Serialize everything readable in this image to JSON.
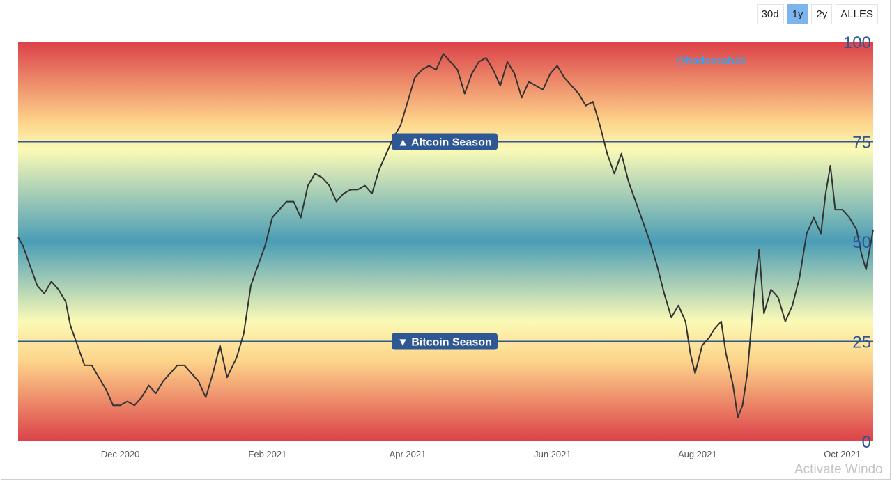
{
  "range_selector": {
    "buttons": [
      {
        "label": "30d",
        "active": false
      },
      {
        "label": "1y",
        "active": true
      },
      {
        "label": "2y",
        "active": false
      },
      {
        "label": "ALLES",
        "active": false
      }
    ],
    "active_color": "#7cb5ec"
  },
  "watermark": "Activate Windo",
  "chart_data": {
    "type": "line",
    "title": "",
    "xlabel": "",
    "ylabel": "",
    "ylim": [
      0,
      100
    ],
    "xlim": [
      "2020-10-19",
      "2021-10-14"
    ],
    "y_ticks": [
      "0",
      "25",
      "50",
      "75",
      "100"
    ],
    "x_ticks": [
      {
        "date": "2020-12-01",
        "label": "Dec 2020"
      },
      {
        "date": "2021-02-01",
        "label": "Feb 2021"
      },
      {
        "date": "2021-04-01",
        "label": "Apr 2021"
      },
      {
        "date": "2021-06-01",
        "label": "Jun 2021"
      },
      {
        "date": "2021-08-01",
        "label": "Aug 2021"
      },
      {
        "date": "2021-10-01",
        "label": "Oct 2021"
      }
    ],
    "thresholds": [
      {
        "value": 75,
        "label": "▲ Altcoin Season"
      },
      {
        "value": 25,
        "label": "▼ Bitcoin Season"
      }
    ],
    "annotation": "@hadassah26",
    "background_gradient": [
      "#dc4149",
      "#fdd38a",
      "#fbfab6",
      "#4a9db6",
      "#fbfab6",
      "#fdd38a",
      "#dc4149"
    ],
    "line_color": "#333333",
    "threshold_color": "#2f5794",
    "series": [
      {
        "points": [
          [
            "2020-10-19",
            51
          ],
          [
            "2020-10-21",
            49
          ],
          [
            "2020-10-24",
            44
          ],
          [
            "2020-10-27",
            39
          ],
          [
            "2020-10-30",
            37
          ],
          [
            "2020-11-02",
            40
          ],
          [
            "2020-11-05",
            38
          ],
          [
            "2020-11-08",
            35
          ],
          [
            "2020-11-10",
            29
          ],
          [
            "2020-11-13",
            24
          ],
          [
            "2020-11-16",
            19
          ],
          [
            "2020-11-19",
            19
          ],
          [
            "2020-11-22",
            16
          ],
          [
            "2020-11-25",
            13
          ],
          [
            "2020-11-28",
            9
          ],
          [
            "2020-12-01",
            9
          ],
          [
            "2020-12-04",
            10
          ],
          [
            "2020-12-07",
            9
          ],
          [
            "2020-12-10",
            11
          ],
          [
            "2020-12-13",
            14
          ],
          [
            "2020-12-16",
            12
          ],
          [
            "2020-12-19",
            15
          ],
          [
            "2020-12-22",
            17
          ],
          [
            "2020-12-25",
            19
          ],
          [
            "2020-12-28",
            19
          ],
          [
            "2020-12-31",
            17
          ],
          [
            "2021-01-03",
            15
          ],
          [
            "2021-01-06",
            11
          ],
          [
            "2021-01-09",
            17
          ],
          [
            "2021-01-12",
            24
          ],
          [
            "2021-01-15",
            16
          ],
          [
            "2021-01-19",
            21
          ],
          [
            "2021-01-22",
            27
          ],
          [
            "2021-01-25",
            39
          ],
          [
            "2021-01-28",
            44
          ],
          [
            "2021-01-31",
            49
          ],
          [
            "2021-02-03",
            56
          ],
          [
            "2021-02-06",
            58
          ],
          [
            "2021-02-09",
            60
          ],
          [
            "2021-02-12",
            60
          ],
          [
            "2021-02-15",
            56
          ],
          [
            "2021-02-18",
            64
          ],
          [
            "2021-02-21",
            67
          ],
          [
            "2021-02-24",
            66
          ],
          [
            "2021-02-27",
            64
          ],
          [
            "2021-03-02",
            60
          ],
          [
            "2021-03-05",
            62
          ],
          [
            "2021-03-08",
            63
          ],
          [
            "2021-03-11",
            63
          ],
          [
            "2021-03-14",
            64
          ],
          [
            "2021-03-17",
            62
          ],
          [
            "2021-03-20",
            68
          ],
          [
            "2021-03-23",
            72
          ],
          [
            "2021-03-26",
            76
          ],
          [
            "2021-03-29",
            79
          ],
          [
            "2021-04-01",
            85
          ],
          [
            "2021-04-04",
            91
          ],
          [
            "2021-04-07",
            93
          ],
          [
            "2021-04-10",
            94
          ],
          [
            "2021-04-13",
            93
          ],
          [
            "2021-04-16",
            97
          ],
          [
            "2021-04-19",
            95
          ],
          [
            "2021-04-22",
            93
          ],
          [
            "2021-04-25",
            87
          ],
          [
            "2021-04-28",
            92
          ],
          [
            "2021-05-01",
            95
          ],
          [
            "2021-05-04",
            96
          ],
          [
            "2021-05-07",
            93
          ],
          [
            "2021-05-10",
            89
          ],
          [
            "2021-05-13",
            95
          ],
          [
            "2021-05-16",
            92
          ],
          [
            "2021-05-19",
            86
          ],
          [
            "2021-05-22",
            90
          ],
          [
            "2021-05-25",
            89
          ],
          [
            "2021-05-28",
            88
          ],
          [
            "2021-05-31",
            92
          ],
          [
            "2021-06-03",
            94
          ],
          [
            "2021-06-06",
            91
          ],
          [
            "2021-06-09",
            89
          ],
          [
            "2021-06-12",
            87
          ],
          [
            "2021-06-15",
            84
          ],
          [
            "2021-06-18",
            85
          ],
          [
            "2021-06-21",
            79
          ],
          [
            "2021-06-24",
            72
          ],
          [
            "2021-06-27",
            67
          ],
          [
            "2021-06-30",
            72
          ],
          [
            "2021-07-03",
            65
          ],
          [
            "2021-07-06",
            60
          ],
          [
            "2021-07-09",
            55
          ],
          [
            "2021-07-12",
            50
          ],
          [
            "2021-07-15",
            44
          ],
          [
            "2021-07-18",
            37
          ],
          [
            "2021-07-21",
            31
          ],
          [
            "2021-07-24",
            34
          ],
          [
            "2021-07-27",
            30
          ],
          [
            "2021-07-29",
            22
          ],
          [
            "2021-07-31",
            17
          ],
          [
            "2021-08-03",
            24
          ],
          [
            "2021-08-06",
            26
          ],
          [
            "2021-08-08",
            28
          ],
          [
            "2021-08-11",
            30
          ],
          [
            "2021-08-13",
            22
          ],
          [
            "2021-08-16",
            14
          ],
          [
            "2021-08-18",
            6
          ],
          [
            "2021-08-20",
            9
          ],
          [
            "2021-08-22",
            17
          ],
          [
            "2021-08-25",
            38
          ],
          [
            "2021-08-27",
            48
          ],
          [
            "2021-08-29",
            32
          ],
          [
            "2021-09-01",
            38
          ],
          [
            "2021-09-04",
            36
          ],
          [
            "2021-09-07",
            30
          ],
          [
            "2021-09-10",
            34
          ],
          [
            "2021-09-13",
            41
          ],
          [
            "2021-09-16",
            52
          ],
          [
            "2021-09-19",
            56
          ],
          [
            "2021-09-22",
            52
          ],
          [
            "2021-09-24",
            62
          ],
          [
            "2021-09-26",
            69
          ],
          [
            "2021-09-28",
            58
          ],
          [
            "2021-10-01",
            58
          ],
          [
            "2021-10-04",
            56
          ],
          [
            "2021-10-07",
            53
          ],
          [
            "2021-10-09",
            47
          ],
          [
            "2021-10-11",
            43
          ],
          [
            "2021-10-14",
            53
          ]
        ]
      }
    ]
  }
}
